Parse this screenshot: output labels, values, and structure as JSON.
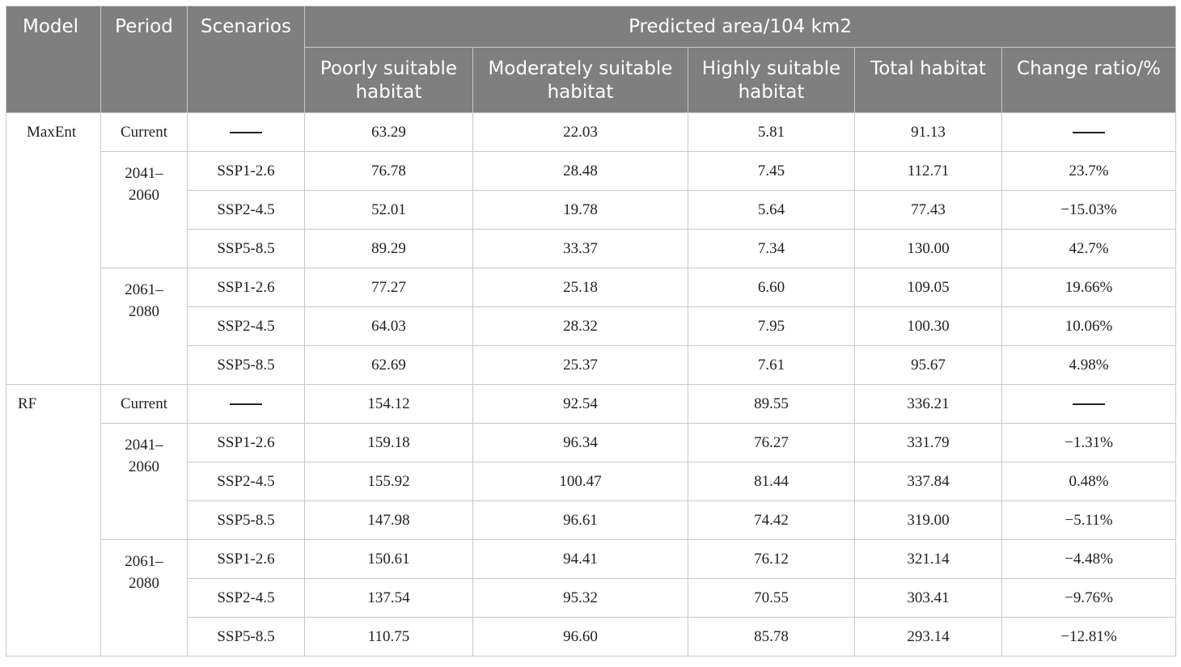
{
  "headers": {
    "model": "Model",
    "period": "Period",
    "scenarios": "Scenarios",
    "predicted_area": "Predicted area/104 km2",
    "poorly": "Poorly suitable habitat",
    "moderately": "Moderately suitable habitat",
    "highly": "Highly suitable habitat",
    "total": "Total habitat",
    "change": "Change ratio/%"
  },
  "maxent": {
    "model": "MaxEnt",
    "current": {
      "period": "Current",
      "poorly": "63.29",
      "moderately": "22.03",
      "highly": "5.81",
      "total": "91.13"
    },
    "p1": {
      "period_a": "2041–",
      "period_b": "2060",
      "rows": [
        {
          "scenario": "SSP1-2.6",
          "poorly": "76.78",
          "moderately": "28.48",
          "highly": "7.45",
          "total": "112.71",
          "change": "23.7%"
        },
        {
          "scenario": "SSP2-4.5",
          "poorly": "52.01",
          "moderately": "19.78",
          "highly": "5.64",
          "total": "77.43",
          "change": "−15.03%"
        },
        {
          "scenario": "SSP5-8.5",
          "poorly": "89.29",
          "moderately": "33.37",
          "highly": "7.34",
          "total": "130.00",
          "change": "42.7%"
        }
      ]
    },
    "p2": {
      "period_a": "2061–",
      "period_b": "2080",
      "rows": [
        {
          "scenario": "SSP1-2.6",
          "poorly": "77.27",
          "moderately": "25.18",
          "highly": "6.60",
          "total": "109.05",
          "change": "19.66%"
        },
        {
          "scenario": "SSP2-4.5",
          "poorly": "64.03",
          "moderately": "28.32",
          "highly": "7.95",
          "total": "100.30",
          "change": "10.06%"
        },
        {
          "scenario": "SSP5-8.5",
          "poorly": "62.69",
          "moderately": "25.37",
          "highly": "7.61",
          "total": "95.67",
          "change": "4.98%"
        }
      ]
    }
  },
  "rf": {
    "model": "RF",
    "current": {
      "period": "Current",
      "poorly": "154.12",
      "moderately": "92.54",
      "highly": "89.55",
      "total": "336.21"
    },
    "p1": {
      "period_a": "2041–",
      "period_b": "2060",
      "rows": [
        {
          "scenario": "SSP1-2.6",
          "poorly": "159.18",
          "moderately": "96.34",
          "highly": "76.27",
          "total": "331.79",
          "change": "−1.31%"
        },
        {
          "scenario": "SSP2-4.5",
          "poorly": "155.92",
          "moderately": "100.47",
          "highly": "81.44",
          "total": "337.84",
          "change": "0.48%"
        },
        {
          "scenario": "SSP5-8.5",
          "poorly": "147.98",
          "moderately": "96.61",
          "highly": "74.42",
          "total": "319.00",
          "change": "−5.11%"
        }
      ]
    },
    "p2": {
      "period_a": "2061–",
      "period_b": "2080",
      "rows": [
        {
          "scenario": "SSP1-2.6",
          "poorly": "150.61",
          "moderately": "94.41",
          "highly": "76.12",
          "total": "321.14",
          "change": "−4.48%"
        },
        {
          "scenario": "SSP2-4.5",
          "poorly": "137.54",
          "moderately": "95.32",
          "highly": "70.55",
          "total": "303.41",
          "change": "−9.76%"
        },
        {
          "scenario": "SSP5-8.5",
          "poorly": "110.75",
          "moderately": "96.60",
          "highly": "85.78",
          "total": "293.14",
          "change": "−12.81%"
        }
      ]
    }
  }
}
